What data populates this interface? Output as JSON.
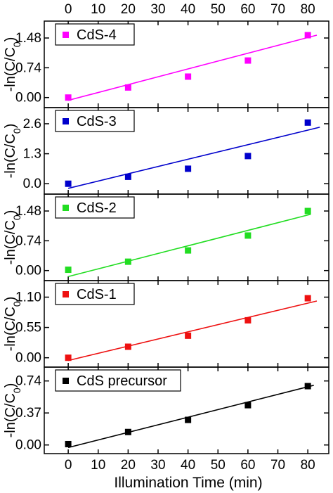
{
  "chart_data": [
    {
      "type": "scatter",
      "x": [
        0,
        20,
        40,
        60,
        80
      ],
      "ylim": [
        -0.25,
        1.9
      ],
      "ylabel": "-ln(C/C0)",
      "yticks": [
        "0.00",
        "0.74",
        "1.48"
      ],
      "yticks_values": [
        0.0,
        0.74,
        1.48
      ],
      "legend": "CdS-4",
      "series": [
        {
          "name": "CdS-4",
          "color": "#ff00ff",
          "values": [
            0.0,
            0.25,
            0.52,
            0.92,
            1.55
          ],
          "fit": {
            "x": [
              0,
              83
            ],
            "y": [
              -0.07,
              1.55
            ]
          }
        }
      ]
    },
    {
      "type": "scatter",
      "x": [
        0,
        20,
        40,
        60,
        80
      ],
      "ylim": [
        -0.45,
        3.3
      ],
      "ylabel": "-ln(C/C0)",
      "yticks": [
        "0.0",
        "1.3",
        "2.6"
      ],
      "yticks_values": [
        0.0,
        1.3,
        2.6
      ],
      "legend": "CdS-3",
      "series": [
        {
          "name": "CdS-3",
          "color": "#0000cc",
          "values": [
            0.0,
            0.3,
            0.65,
            1.2,
            2.65
          ],
          "fit": {
            "x": [
              0,
              84
            ],
            "y": [
              -0.2,
              2.45
            ]
          }
        }
      ]
    },
    {
      "type": "scatter",
      "x": [
        0,
        20,
        40,
        60,
        80
      ],
      "ylim": [
        -0.25,
        1.9
      ],
      "ylabel": "-ln(C/C0)",
      "yticks": [
        "0.00",
        "0.74",
        "1.48"
      ],
      "yticks_values": [
        0.0,
        0.74,
        1.48
      ],
      "legend": "CdS-2",
      "series": [
        {
          "name": "CdS-2",
          "color": "#22dd22",
          "values": [
            0.02,
            0.22,
            0.5,
            0.87,
            1.48
          ],
          "fit": {
            "x": [
              0,
              81
            ],
            "y": [
              -0.15,
              1.4
            ]
          }
        }
      ]
    },
    {
      "type": "scatter",
      "x": [
        0,
        20,
        40,
        60,
        80
      ],
      "ylim": [
        -0.17,
        1.4
      ],
      "ylabel": "-ln(C/C0)",
      "yticks": [
        "0.00",
        "0.55",
        "1.10"
      ],
      "yticks_values": [
        0.0,
        0.55,
        1.1
      ],
      "legend": "CdS-1",
      "series": [
        {
          "name": "CdS-1",
          "color": "#ee1111",
          "values": [
            0.0,
            0.2,
            0.4,
            0.68,
            1.08
          ],
          "fit": {
            "x": [
              0,
              83
            ],
            "y": [
              -0.05,
              1.03
            ]
          }
        }
      ]
    },
    {
      "type": "scatter",
      "x": [
        0,
        20,
        40,
        60,
        80
      ],
      "ylim": [
        -0.1,
        0.9
      ],
      "ylabel": "-ln(C/C0)",
      "yticks": [
        "0.00",
        "0.37",
        "0.74"
      ],
      "yticks_values": [
        0.0,
        0.37,
        0.74
      ],
      "legend": "CdS precursor",
      "series": [
        {
          "name": "CdS precursor",
          "color": "#000000",
          "values": [
            0.01,
            0.15,
            0.29,
            0.46,
            0.68
          ],
          "fit": {
            "x": [
              0,
              82
            ],
            "y": [
              -0.03,
              0.69
            ]
          }
        }
      ]
    }
  ],
  "axes": {
    "xlabel": "Illumination Time (min)",
    "xlim": [
      -8,
      87
    ],
    "xticks": [
      "0",
      "10",
      "20",
      "30",
      "40",
      "50",
      "60",
      "70",
      "80"
    ],
    "xticks_values": [
      0,
      10,
      20,
      30,
      40,
      50,
      60,
      70,
      80
    ]
  }
}
